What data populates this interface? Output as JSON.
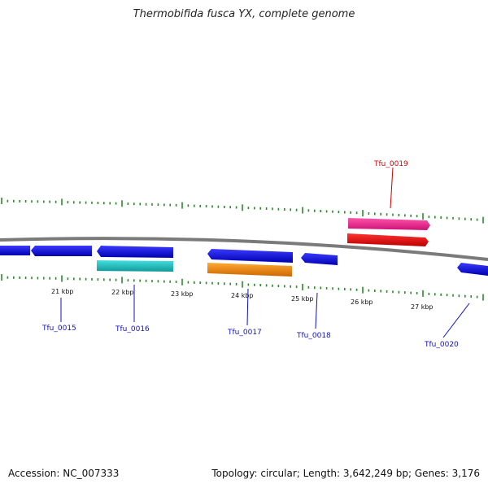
{
  "title": "Thermobifida fusca YX, complete genome",
  "footer": {
    "accession": "Accession: NC_007333",
    "summary": "Topology: circular; Length: 3,642,249 bp; Genes: 3,176"
  },
  "scale_labels": [
    "21 kbp",
    "22 kbp",
    "23 kbp",
    "24 kbp",
    "25 kbp",
    "26 kbp",
    "27 kbp"
  ],
  "gene_labels": [
    "Tfu_0015",
    "Tfu_0016",
    "Tfu_0017",
    "Tfu_0018",
    "Tfu_0019",
    "Tfu_0020"
  ],
  "colors": {
    "backbone": "#808080",
    "cds_plus": "#0000ee",
    "cds_minus": "#0000ee",
    "teal": "#22cccc",
    "orange": "#ff9900",
    "pink": "#ff3399",
    "red": "#ff0000",
    "tick": "#2a8a2a",
    "label_blue": "#1010c0",
    "label_red": "#cc0000"
  }
}
